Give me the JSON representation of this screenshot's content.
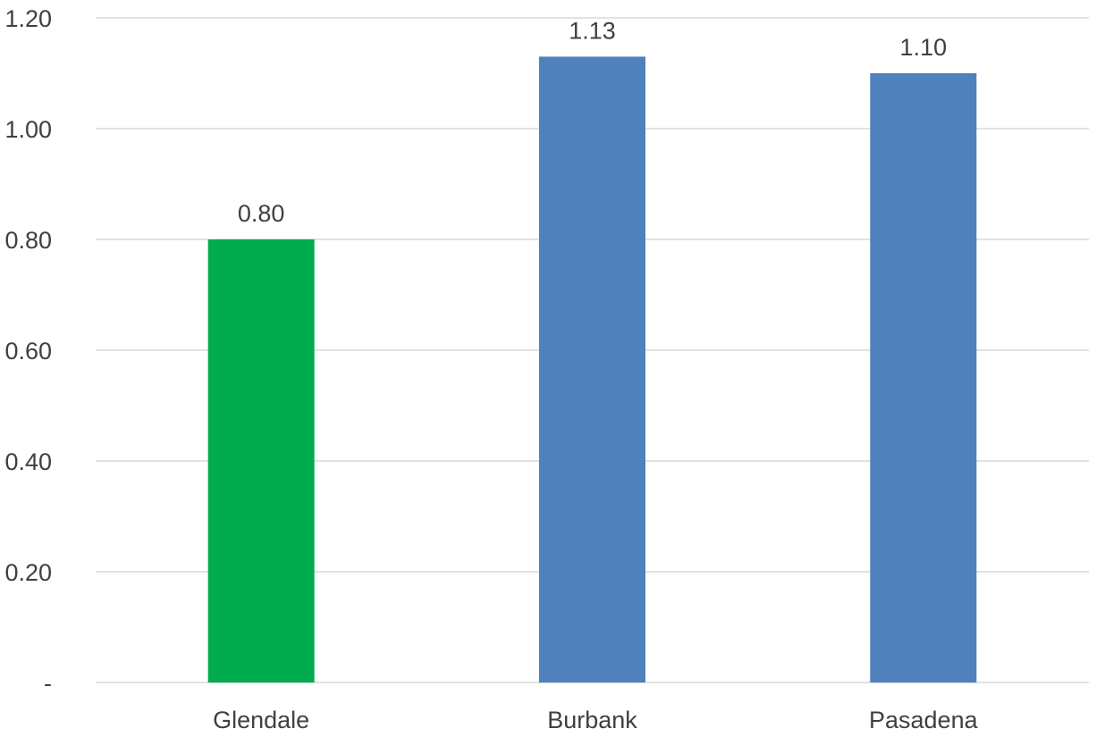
{
  "chart_data": {
    "type": "bar",
    "title": "",
    "xlabel": "",
    "ylabel": "",
    "categories": [
      "Glendale",
      "Burbank",
      "Pasadena"
    ],
    "values": [
      0.8,
      1.13,
      1.1
    ],
    "value_labels": [
      "0.80",
      "1.13",
      "1.10"
    ],
    "bar_colors": [
      "#00ac4e",
      "#4f81bd",
      "#4f81bd"
    ],
    "ylim": [
      0,
      1.2
    ],
    "yticks": [
      0,
      0.2,
      0.4,
      0.6,
      0.8,
      1.0,
      1.2
    ],
    "ytick_labels": [
      "-",
      "0.20",
      "0.40",
      "0.60",
      "0.80",
      "1.00",
      "1.20"
    ],
    "grid": true,
    "legend": "none"
  }
}
